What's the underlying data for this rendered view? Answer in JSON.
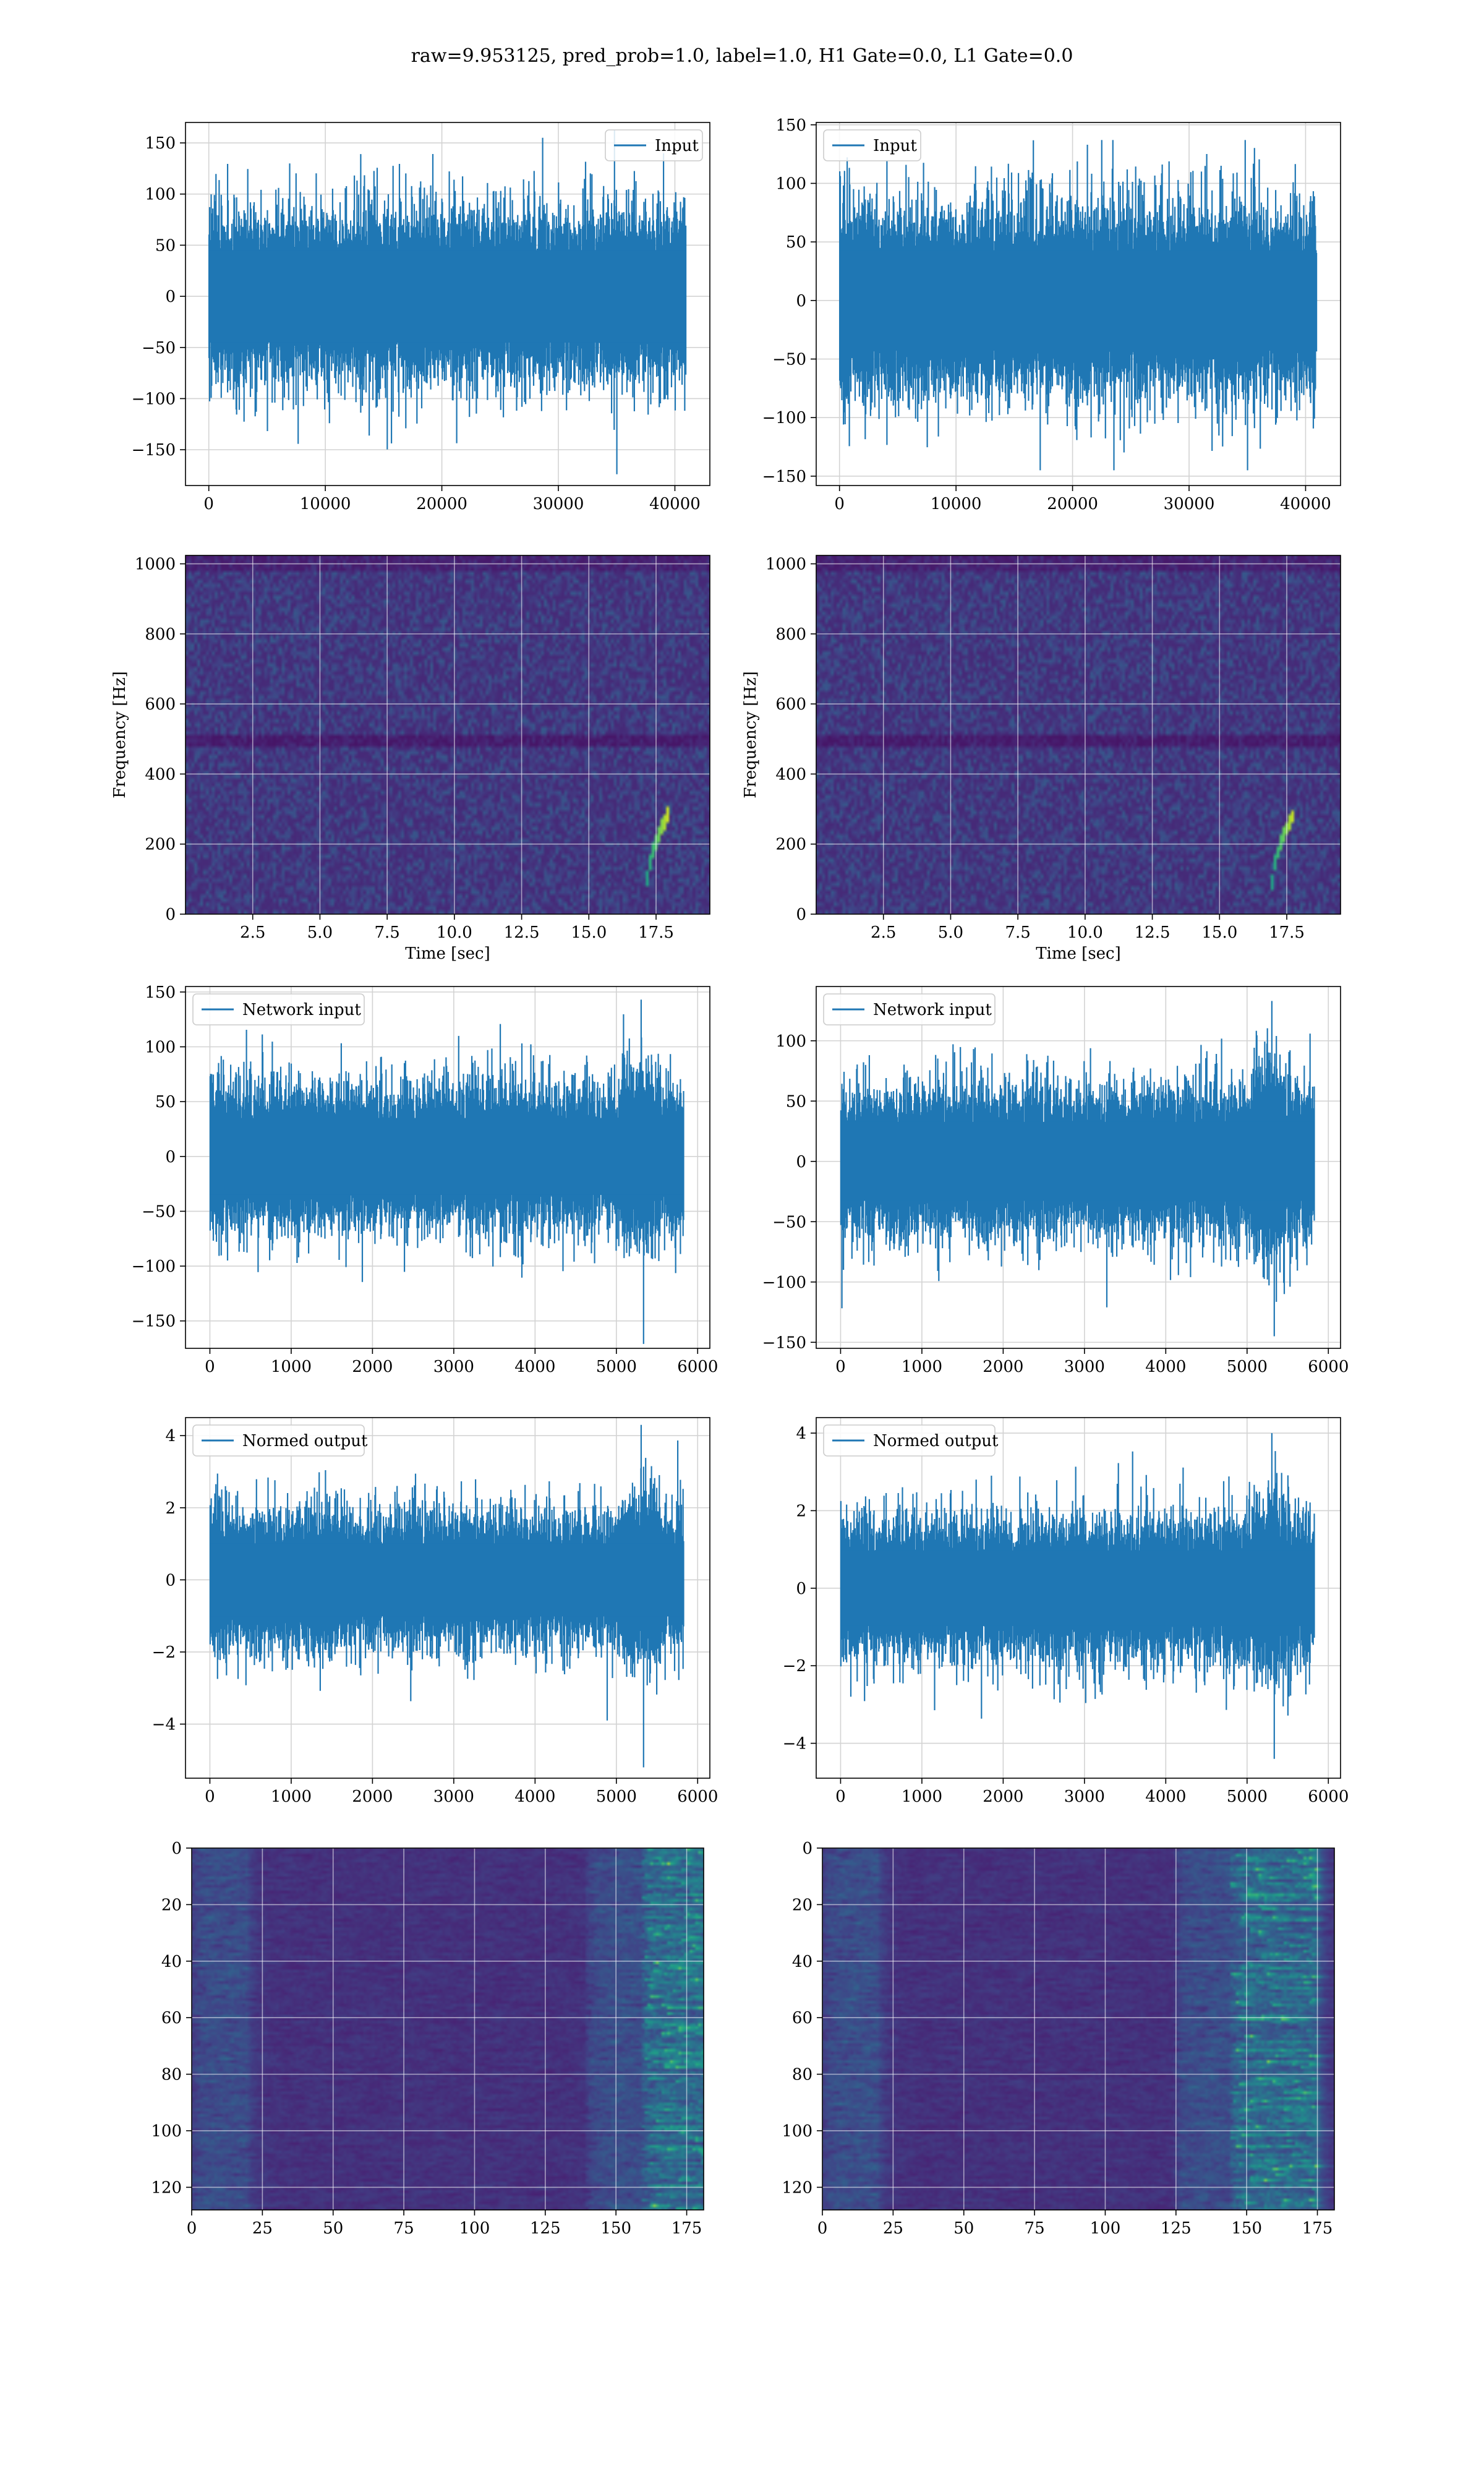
{
  "figure": {
    "suptitle": "raw=9.953125, pred_prob=1.0, label=1.0, H1 Gate=0.0, L1 Gate=0.0"
  },
  "colors": {
    "line": "#1f77b4",
    "grid": "#d3d3d3",
    "viridis_low": "#440154",
    "viridis_mid": "#21918c",
    "viridis_high": "#fde725"
  },
  "chart_data": [
    {
      "id": "input-h1",
      "type": "line",
      "series": [
        {
          "name": "Input"
        }
      ],
      "legend": "top-right",
      "grid": true,
      "xlim": [
        -2000,
        43000
      ],
      "ylim": [
        -185,
        170
      ],
      "xticks": [
        0,
        10000,
        20000,
        30000,
        40000
      ],
      "xtick_labels": [
        "0",
        "10000",
        "20000",
        "30000",
        "40000"
      ],
      "yticks": [
        -150,
        -100,
        -50,
        0,
        50,
        100,
        150
      ],
      "ytick_labels": [
        "−150",
        "−100",
        "−50",
        "0",
        "50",
        "100",
        "150"
      ],
      "n_points": 40960,
      "amplitude": 58,
      "max": 163,
      "min": -174
    },
    {
      "id": "input-l1",
      "type": "line",
      "series": [
        {
          "name": "Input"
        }
      ],
      "legend": "top-left",
      "grid": true,
      "xlim": [
        -2000,
        43000
      ],
      "ylim": [
        -158,
        152
      ],
      "xticks": [
        0,
        10000,
        20000,
        30000,
        40000
      ],
      "xtick_labels": [
        "0",
        "10000",
        "20000",
        "30000",
        "40000"
      ],
      "yticks": [
        -150,
        -100,
        -50,
        0,
        50,
        100,
        150
      ],
      "ytick_labels": [
        "−150",
        "−100",
        "−50",
        "0",
        "50",
        "100",
        "150"
      ],
      "n_points": 40960,
      "amplitude": 55,
      "max": 137,
      "min": -145
    },
    {
      "id": "spec-h1",
      "type": "heatmap",
      "grid": true,
      "xlabel": "Time [sec]",
      "ylabel": "Frequency [Hz]",
      "xlim": [
        0,
        19.5
      ],
      "ylim": [
        0,
        1024
      ],
      "xticks": [
        2.5,
        5.0,
        7.5,
        10.0,
        12.5,
        15.0,
        17.5
      ],
      "xtick_labels": [
        "2.5",
        "5.0",
        "7.5",
        "10.0",
        "12.5",
        "15.0",
        "17.5"
      ],
      "yticks": [
        0,
        200,
        400,
        600,
        800,
        1000
      ],
      "ytick_labels": [
        "0",
        "200",
        "400",
        "600",
        "800",
        "1000"
      ],
      "chirp_end_time": 18.0
    },
    {
      "id": "spec-l1",
      "type": "heatmap",
      "grid": true,
      "xlabel": "Time [sec]",
      "ylabel": "Frequency [Hz]",
      "xlim": [
        0,
        19.5
      ],
      "ylim": [
        0,
        1024
      ],
      "xticks": [
        2.5,
        5.0,
        7.5,
        10.0,
        12.5,
        15.0,
        17.5
      ],
      "xtick_labels": [
        "2.5",
        "5.0",
        "7.5",
        "10.0",
        "12.5",
        "15.0",
        "17.5"
      ],
      "yticks": [
        0,
        200,
        400,
        600,
        800,
        1000
      ],
      "ytick_labels": [
        "0",
        "200",
        "400",
        "600",
        "800",
        "1000"
      ],
      "chirp_end_time": 17.8
    },
    {
      "id": "netin-h1",
      "type": "line",
      "series": [
        {
          "name": "Network input"
        }
      ],
      "legend": "top-left",
      "grid": true,
      "xlim": [
        -300,
        6150
      ],
      "ylim": [
        -175,
        155
      ],
      "xticks": [
        0,
        1000,
        2000,
        3000,
        4000,
        5000,
        6000
      ],
      "xtick_labels": [
        "0",
        "1000",
        "2000",
        "3000",
        "4000",
        "5000",
        "6000"
      ],
      "yticks": [
        -150,
        -100,
        -50,
        0,
        50,
        100,
        150
      ],
      "ytick_labels": [
        "−150",
        "−100",
        "−50",
        "0",
        "50",
        "100",
        "150"
      ],
      "n_points": 5830,
      "amplitude": 45,
      "max": 143,
      "min": -171
    },
    {
      "id": "netin-l1",
      "type": "line",
      "series": [
        {
          "name": "Network input"
        }
      ],
      "legend": "top-left",
      "grid": true,
      "xlim": [
        -300,
        6150
      ],
      "ylim": [
        -155,
        145
      ],
      "xticks": [
        0,
        1000,
        2000,
        3000,
        4000,
        5000,
        6000
      ],
      "xtick_labels": [
        "0",
        "1000",
        "2000",
        "3000",
        "4000",
        "5000",
        "6000"
      ],
      "yticks": [
        -150,
        -100,
        -50,
        0,
        50,
        100
      ],
      "ytick_labels": [
        "−150",
        "−100",
        "−50",
        "0",
        "50",
        "100"
      ],
      "n_points": 5830,
      "amplitude": 42,
      "max": 133,
      "min": -145
    },
    {
      "id": "norm-h1",
      "type": "line",
      "series": [
        {
          "name": "Normed output"
        }
      ],
      "legend": "top-left",
      "grid": true,
      "xlim": [
        -300,
        6150
      ],
      "ylim": [
        -5.5,
        4.5
      ],
      "xticks": [
        0,
        1000,
        2000,
        3000,
        4000,
        5000,
        6000
      ],
      "xtick_labels": [
        "0",
        "1000",
        "2000",
        "3000",
        "4000",
        "5000",
        "6000"
      ],
      "yticks": [
        -4,
        -2,
        0,
        2,
        4
      ],
      "ytick_labels": [
        "−4",
        "−2",
        "0",
        "2",
        "4"
      ],
      "n_points": 5830,
      "amplitude": 1.3,
      "max": 4.3,
      "min": -5.2
    },
    {
      "id": "norm-l1",
      "type": "line",
      "series": [
        {
          "name": "Normed output"
        }
      ],
      "legend": "top-left",
      "grid": true,
      "xlim": [
        -300,
        6150
      ],
      "ylim": [
        -4.9,
        4.4
      ],
      "xticks": [
        0,
        1000,
        2000,
        3000,
        4000,
        5000,
        6000
      ],
      "xtick_labels": [
        "0",
        "1000",
        "2000",
        "3000",
        "4000",
        "5000",
        "6000"
      ],
      "yticks": [
        -4,
        -2,
        0,
        2,
        4
      ],
      "ytick_labels": [
        "−4",
        "−2",
        "0",
        "2",
        "4"
      ],
      "n_points": 5830,
      "amplitude": 1.25,
      "max": 4.0,
      "min": -4.4
    },
    {
      "id": "feat-h1",
      "type": "heatmap",
      "grid": true,
      "xlim": [
        0,
        181
      ],
      "ylim": [
        128,
        0
      ],
      "rows": 128,
      "cols": 182,
      "xticks": [
        0,
        25,
        50,
        75,
        100,
        125,
        150,
        175
      ],
      "xtick_labels": [
        "0",
        "25",
        "50",
        "75",
        "100",
        "125",
        "150",
        "175"
      ],
      "yticks": [
        0,
        20,
        40,
        60,
        80,
        100,
        120
      ],
      "ytick_labels": [
        "0",
        "20",
        "40",
        "60",
        "80",
        "100",
        "120"
      ],
      "hot_columns": [
        160,
        181
      ]
    },
    {
      "id": "feat-l1",
      "type": "heatmap",
      "grid": true,
      "xlim": [
        0,
        181
      ],
      "ylim": [
        128,
        0
      ],
      "rows": 128,
      "cols": 182,
      "xticks": [
        0,
        25,
        50,
        75,
        100,
        125,
        150,
        175
      ],
      "xtick_labels": [
        "0",
        "25",
        "50",
        "75",
        "100",
        "125",
        "150",
        "175"
      ],
      "yticks": [
        0,
        20,
        40,
        60,
        80,
        100,
        120
      ],
      "ytick_labels": [
        "0",
        "20",
        "40",
        "60",
        "80",
        "100",
        "120"
      ],
      "hot_columns": [
        145,
        175
      ]
    }
  ]
}
